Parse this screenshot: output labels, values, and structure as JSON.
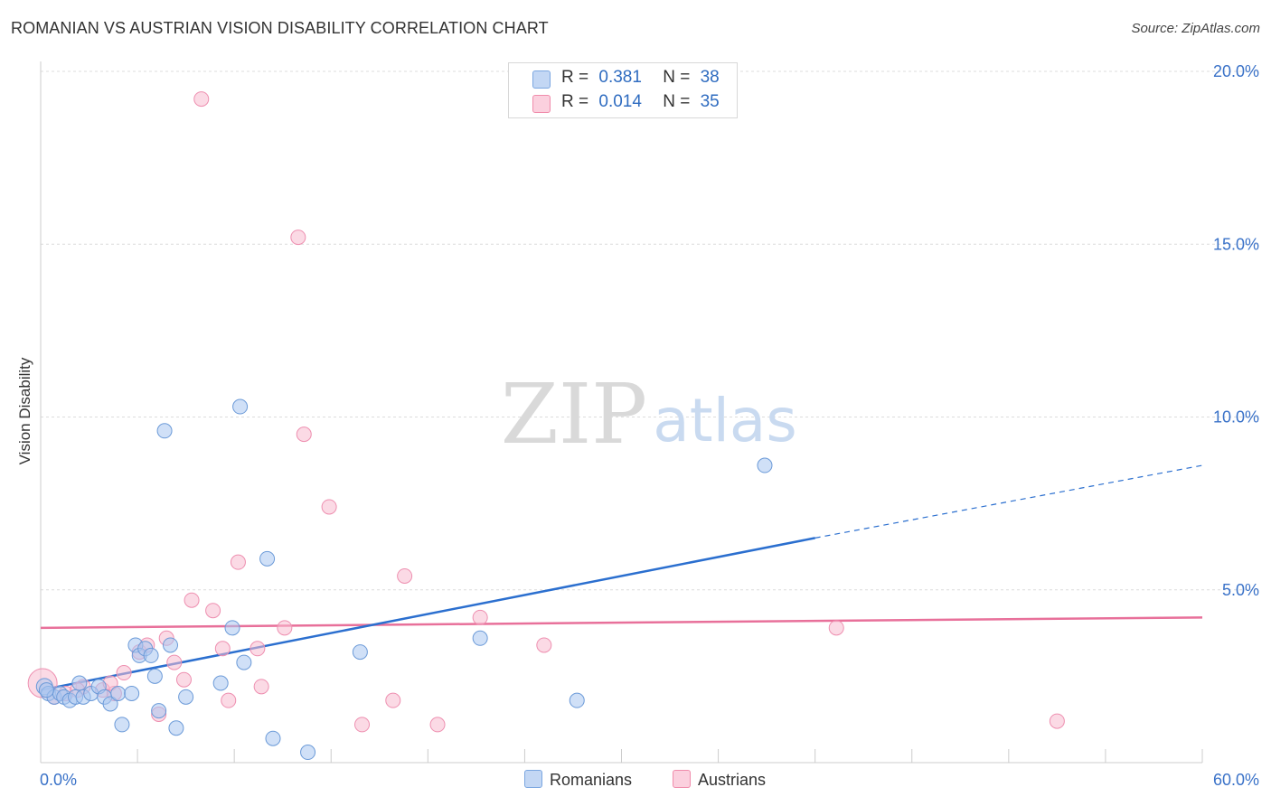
{
  "header": {
    "title": "ROMANIAN VS AUSTRIAN VISION DISABILITY CORRELATION CHART",
    "source": "Source: ZipAtlas.com"
  },
  "watermark": {
    "zip": "ZIP",
    "atlas": "atlas"
  },
  "legend": {
    "r_label": "R =",
    "n_label": "N =",
    "rows": [
      {
        "r": "0.381",
        "n": "38",
        "color": "#7aa6e0"
      },
      {
        "r": "0.014",
        "n": "35",
        "color": "#f08cab"
      }
    ]
  },
  "bottom_legend": {
    "romanians": "Romanians",
    "austrians": "Austrians"
  },
  "colors": {
    "romanians_fill": "#aac7f0",
    "romanians_stroke": "#6b9ad8",
    "romanians_line": "#2b6fcf",
    "austrians_fill": "#f7bcd0",
    "austrians_stroke": "#ee8fb0",
    "austrians_line": "#e8709a",
    "axis_text": "#3a72c8"
  },
  "chart_data": {
    "type": "scatter",
    "title": "ROMANIAN VS AUSTRIAN VISION DISABILITY CORRELATION CHART",
    "xlabel": "",
    "ylabel": "Vision Disability",
    "xlim": [
      0,
      60
    ],
    "ylim": [
      0,
      20
    ],
    "x_tick_labels": [
      "0.0%",
      "60.0%"
    ],
    "y_ticks": [
      5,
      10,
      15,
      20
    ],
    "y_tick_labels": [
      "5.0%",
      "10.0%",
      "15.0%",
      "20.0%"
    ],
    "grid": true,
    "series": [
      {
        "name": "Romanians",
        "r": 0.381,
        "n": 38,
        "points": [
          [
            0.2,
            2.2
          ],
          [
            0.4,
            2.0
          ],
          [
            0.7,
            1.9
          ],
          [
            1.0,
            2.0
          ],
          [
            1.2,
            1.9
          ],
          [
            1.5,
            1.8
          ],
          [
            1.8,
            1.9
          ],
          [
            2.0,
            2.3
          ],
          [
            2.2,
            1.9
          ],
          [
            2.6,
            2.0
          ],
          [
            3.0,
            2.2
          ],
          [
            3.3,
            1.9
          ],
          [
            3.6,
            1.7
          ],
          [
            4.0,
            2.0
          ],
          [
            4.2,
            1.1
          ],
          [
            4.7,
            2.0
          ],
          [
            4.9,
            3.4
          ],
          [
            5.1,
            3.1
          ],
          [
            5.4,
            3.3
          ],
          [
            5.7,
            3.1
          ],
          [
            5.9,
            2.5
          ],
          [
            6.1,
            1.5
          ],
          [
            6.4,
            9.6
          ],
          [
            6.7,
            3.4
          ],
          [
            7.0,
            1.0
          ],
          [
            7.5,
            1.9
          ],
          [
            9.3,
            2.3
          ],
          [
            9.9,
            3.9
          ],
          [
            10.3,
            10.3
          ],
          [
            10.5,
            2.9
          ],
          [
            11.7,
            5.9
          ],
          [
            12.0,
            0.7
          ],
          [
            13.8,
            0.3
          ],
          [
            16.5,
            3.2
          ],
          [
            22.7,
            3.6
          ],
          [
            27.7,
            1.8
          ],
          [
            37.4,
            8.6
          ],
          [
            0.3,
            2.1
          ]
        ]
      },
      {
        "name": "Austrians",
        "r": 0.014,
        "n": 35,
        "points": [
          [
            0.1,
            2.3
          ],
          [
            0.7,
            1.9
          ],
          [
            1.3,
            2.0
          ],
          [
            2.2,
            2.2
          ],
          [
            3.2,
            2.1
          ],
          [
            3.8,
            2.0
          ],
          [
            4.3,
            2.6
          ],
          [
            5.1,
            3.2
          ],
          [
            5.5,
            3.4
          ],
          [
            6.1,
            1.4
          ],
          [
            6.5,
            3.6
          ],
          [
            6.9,
            2.9
          ],
          [
            7.4,
            2.4
          ],
          [
            7.8,
            4.7
          ],
          [
            8.3,
            19.2
          ],
          [
            8.9,
            4.4
          ],
          [
            9.4,
            3.3
          ],
          [
            9.7,
            1.8
          ],
          [
            10.2,
            5.8
          ],
          [
            11.2,
            3.3
          ],
          [
            11.4,
            2.2
          ],
          [
            12.6,
            3.9
          ],
          [
            13.3,
            15.2
          ],
          [
            13.6,
            9.5
          ],
          [
            14.9,
            7.4
          ],
          [
            16.6,
            1.1
          ],
          [
            18.2,
            1.8
          ],
          [
            18.8,
            5.4
          ],
          [
            20.5,
            1.1
          ],
          [
            22.7,
            4.2
          ],
          [
            26.0,
            3.4
          ],
          [
            41.1,
            3.9
          ],
          [
            52.5,
            1.2
          ],
          [
            3.6,
            2.3
          ],
          [
            1.9,
            2.1
          ]
        ]
      }
    ],
    "trend_lines": [
      {
        "name": "Romanians",
        "solid": [
          [
            0,
            2.1
          ],
          [
            40,
            6.5
          ]
        ],
        "dashed": [
          [
            40,
            6.5
          ],
          [
            60,
            8.6
          ]
        ]
      },
      {
        "name": "Austrians",
        "solid": [
          [
            0,
            3.9
          ],
          [
            60,
            4.2
          ]
        ]
      }
    ]
  }
}
